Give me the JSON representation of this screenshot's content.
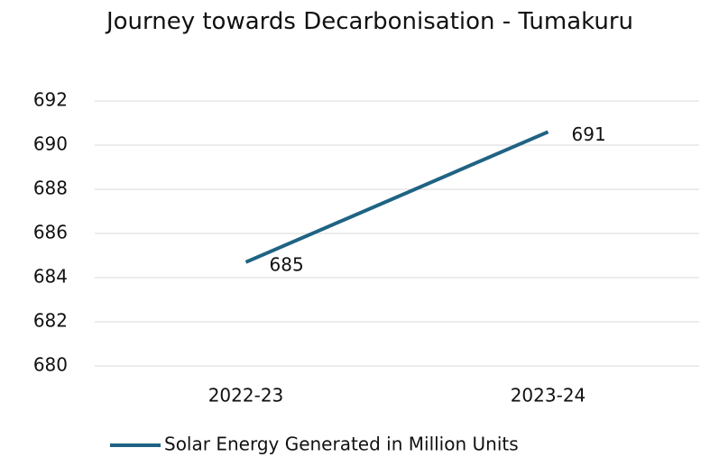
{
  "chart_data": {
    "type": "line",
    "title": "Journey towards Decarbonisation - Tumakuru",
    "categories": [
      "2022-23",
      "2023-24"
    ],
    "series": [
      {
        "name": "Solar Energy Generated in Million Units",
        "color": "#1f6384",
        "values": [
          684.7,
          690.6
        ],
        "value_labels": [
          "685",
          "691"
        ]
      }
    ],
    "ylim": [
      680,
      692
    ],
    "yticks": [
      680,
      682,
      684,
      686,
      688,
      690,
      692
    ],
    "grid": true,
    "legend": "bottom"
  }
}
